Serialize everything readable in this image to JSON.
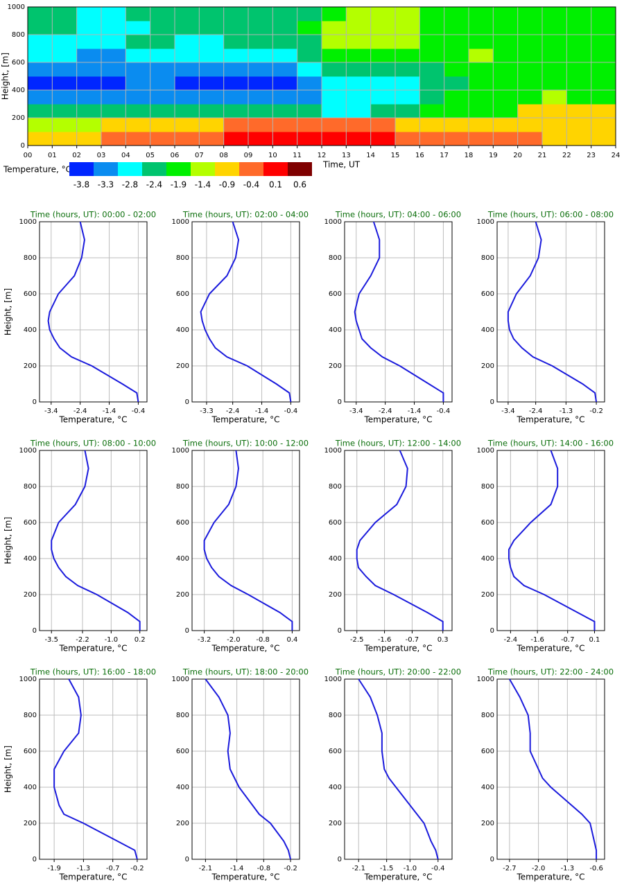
{
  "chart_data": [
    {
      "type": "heatmap",
      "xlabel": "Time, UT",
      "ylabel": "Height, [m]",
      "xlim": [
        0,
        24
      ],
      "ylim": [
        0,
        1000
      ],
      "xticks": [
        {
          "value": 0,
          "label": "00"
        },
        {
          "value": 1,
          "label": "01"
        },
        {
          "value": 2,
          "label": "02"
        },
        {
          "value": 3,
          "label": "03"
        },
        {
          "value": 4,
          "label": "04"
        },
        {
          "value": 5,
          "label": "05"
        },
        {
          "value": 6,
          "label": "06"
        },
        {
          "value": 7,
          "label": "07"
        },
        {
          "value": 8,
          "label": "08"
        },
        {
          "value": 9,
          "label": "09"
        },
        10,
        11,
        12,
        13,
        14,
        15,
        16,
        17,
        18,
        19,
        20,
        21,
        22,
        23,
        24
      ],
      "yticks": [
        0,
        200,
        400,
        600,
        800,
        1000
      ],
      "grid": true,
      "xbins": [
        0,
        1,
        2,
        3,
        4,
        5,
        6,
        7,
        8,
        9,
        10,
        11,
        12,
        13,
        14,
        15,
        16,
        17,
        18,
        19,
        20,
        21,
        22,
        23,
        24
      ],
      "ybins": [
        0,
        100,
        200,
        300,
        400,
        500,
        600,
        700,
        800,
        900,
        1000
      ],
      "z": [
        [
          -0.9,
          -0.9,
          -0.9,
          -0.4,
          -0.4,
          -0.4,
          -0.4,
          -0.4,
          0.1,
          0.1,
          0.1,
          0.1,
          0.1,
          0.1,
          0.1,
          -0.4,
          -0.4,
          -0.4,
          -0.4,
          -0.4,
          -0.4,
          -0.9,
          -0.9,
          -0.9
        ],
        [
          -1.4,
          -1.4,
          -1.4,
          -0.9,
          -0.9,
          -0.9,
          -0.9,
          -0.9,
          -0.4,
          -0.4,
          -0.4,
          -0.4,
          -0.4,
          -0.4,
          -0.4,
          -0.9,
          -0.9,
          -0.9,
          -0.9,
          -0.9,
          -0.9,
          -0.9,
          -0.9,
          -0.9
        ],
        [
          -2.4,
          -2.4,
          -2.4,
          -2.4,
          -2.4,
          -2.4,
          -2.4,
          -2.4,
          -2.4,
          -2.4,
          -2.4,
          -2.4,
          -2.8,
          -2.8,
          -2.4,
          -2.4,
          -1.9,
          -1.9,
          -1.9,
          -1.9,
          -0.9,
          -0.9,
          -0.9,
          -0.9
        ],
        [
          -3.3,
          -3.3,
          -3.3,
          -3.3,
          -3.3,
          -3.3,
          -3.3,
          -3.3,
          -3.3,
          -3.3,
          -3.3,
          -3.3,
          -2.8,
          -2.8,
          -2.8,
          -2.8,
          -2.4,
          -1.9,
          -1.9,
          -1.9,
          -1.9,
          -1.4,
          -1.9,
          -1.9
        ],
        [
          -3.8,
          -3.8,
          -3.8,
          -3.8,
          -3.3,
          -3.3,
          -3.8,
          -3.8,
          -3.8,
          -3.8,
          -3.8,
          -3.3,
          -2.8,
          -2.8,
          -2.8,
          -2.8,
          -2.4,
          -2.4,
          -1.9,
          -1.9,
          -1.9,
          -1.9,
          -1.9,
          -1.9
        ],
        [
          -3.3,
          -3.3,
          -3.3,
          -3.3,
          -3.3,
          -3.3,
          -3.3,
          -3.3,
          -3.3,
          -3.3,
          -3.3,
          -2.8,
          -2.4,
          -2.4,
          -2.4,
          -2.4,
          -2.4,
          -1.9,
          -1.9,
          -1.9,
          -1.9,
          -1.9,
          -1.9,
          -1.9
        ],
        [
          -2.8,
          -2.8,
          -3.3,
          -3.3,
          -2.8,
          -2.8,
          -2.8,
          -2.8,
          -2.8,
          -2.8,
          -2.8,
          -2.4,
          -1.9,
          -1.9,
          -1.9,
          -1.9,
          -1.9,
          -1.9,
          -1.4,
          -1.9,
          -1.9,
          -1.9,
          -1.9,
          -1.9
        ],
        [
          -2.8,
          -2.8,
          -2.8,
          -2.8,
          -2.4,
          -2.4,
          -2.8,
          -2.8,
          -2.4,
          -2.4,
          -2.4,
          -2.4,
          -1.4,
          -1.4,
          -1.4,
          -1.4,
          -1.9,
          -1.9,
          -1.9,
          -1.9,
          -1.9,
          -1.9,
          -1.9,
          -1.9
        ],
        [
          -2.4,
          -2.4,
          -2.8,
          -2.8,
          -2.8,
          -2.4,
          -2.4,
          -2.4,
          -2.4,
          -2.4,
          -2.4,
          -1.9,
          -1.4,
          -1.4,
          -1.4,
          -1.4,
          -1.9,
          -1.9,
          -1.9,
          -1.9,
          -1.9,
          -1.9,
          -1.9,
          -1.9
        ],
        [
          -2.4,
          -2.4,
          -2.8,
          -2.8,
          -2.4,
          -2.4,
          -2.4,
          -2.4,
          -2.4,
          -2.4,
          -2.4,
          -2.4,
          -1.9,
          -1.4,
          -1.4,
          -1.4,
          -1.9,
          -1.9,
          -1.9,
          -1.9,
          -1.9,
          -1.9,
          -1.9,
          -1.9
        ]
      ],
      "colorbar": {
        "label": "Temperature, °C",
        "levels": [
          -3.8,
          -3.3,
          -2.8,
          -2.4,
          -1.9,
          -1.4,
          -0.9,
          -0.4,
          0.1,
          0.6
        ],
        "colors": [
          "#0026ff",
          "#0a8cf0",
          "#00ffff",
          "#00c46e",
          "#00f000",
          "#b4ff00",
          "#ffd400",
          "#ff6a2a",
          "#ff0000",
          "#7f0000"
        ]
      }
    },
    {
      "type": "line",
      "title": "Time (hours, UT): 00:00 - 02:00",
      "xlabel": "Temperature, °C",
      "ylabel": "Height, [m]",
      "color": "#1a1adc",
      "xlim": [
        -3.8,
        -0.1
      ],
      "ylim": [
        0,
        1000
      ],
      "xticks": [
        -3.4,
        -2.4,
        -1.4,
        -0.4
      ],
      "yticks": [
        0,
        200,
        400,
        600,
        800,
        1000
      ],
      "y": [
        0,
        50,
        100,
        200,
        250,
        300,
        350,
        400,
        450,
        500,
        600,
        700,
        800,
        900,
        1000
      ],
      "values": [
        -0.4,
        -0.45,
        -0.95,
        -2.0,
        -2.7,
        -3.1,
        -3.3,
        -3.45,
        -3.5,
        -3.45,
        -3.15,
        -2.6,
        -2.35,
        -2.25,
        -2.4
      ]
    },
    {
      "type": "line",
      "title": "Time (hours, UT): 02:00 - 04:00",
      "xlabel": "Temperature, °C",
      "color": "#1a1adc",
      "xlim": [
        -3.8,
        -0.1
      ],
      "ylim": [
        0,
        1000
      ],
      "xticks": [
        -3.3,
        -2.4,
        -1.4,
        -0.4
      ],
      "yticks": [
        0,
        200,
        400,
        600,
        800,
        1000
      ],
      "y": [
        0,
        50,
        100,
        200,
        250,
        300,
        350,
        400,
        450,
        500,
        600,
        700,
        800,
        900,
        1000
      ],
      "values": [
        -0.4,
        -0.45,
        -0.9,
        -1.9,
        -2.6,
        -3.0,
        -3.2,
        -3.35,
        -3.45,
        -3.5,
        -3.2,
        -2.6,
        -2.3,
        -2.2,
        -2.4
      ]
    },
    {
      "type": "line",
      "title": "Time (hours, UT): 04:00 - 06:00",
      "xlabel": "Temperature, °C",
      "color": "#1a1adc",
      "xlim": [
        -3.8,
        -0.1
      ],
      "ylim": [
        0,
        1000
      ],
      "xticks": [
        -3.4,
        -2.4,
        -1.4,
        -0.4
      ],
      "yticks": [
        0,
        200,
        400,
        600,
        800,
        1000
      ],
      "y": [
        0,
        50,
        100,
        200,
        250,
        300,
        350,
        400,
        450,
        500,
        600,
        700,
        800,
        900,
        1000
      ],
      "values": [
        -0.4,
        -0.4,
        -0.9,
        -1.9,
        -2.5,
        -2.9,
        -3.2,
        -3.3,
        -3.4,
        -3.45,
        -3.3,
        -2.9,
        -2.6,
        -2.6,
        -2.8
      ]
    },
    {
      "type": "line",
      "title": "Time (hours, UT): 06:00 - 08:00",
      "xlabel": "Temperature, °C",
      "color": "#1a1adc",
      "xlim": [
        -3.8,
        0.1
      ],
      "ylim": [
        0,
        1000
      ],
      "xticks": [
        -3.4,
        -2.4,
        -1.3,
        -0.2
      ],
      "yticks": [
        0,
        200,
        400,
        600,
        800,
        1000
      ],
      "y": [
        0,
        50,
        100,
        200,
        250,
        300,
        350,
        400,
        450,
        500,
        600,
        700,
        800,
        900,
        1000
      ],
      "values": [
        -0.2,
        -0.25,
        -0.7,
        -1.8,
        -2.5,
        -2.9,
        -3.2,
        -3.35,
        -3.4,
        -3.4,
        -3.1,
        -2.6,
        -2.3,
        -2.2,
        -2.4
      ]
    },
    {
      "type": "line",
      "title": "Time (hours, UT): 08:00 - 10:00",
      "xlabel": "Temperature, °C",
      "ylabel": "Height, [m]",
      "color": "#1a1adc",
      "xlim": [
        -4.0,
        0.5
      ],
      "ylim": [
        0,
        1000
      ],
      "xticks": [
        -3.5,
        -2.2,
        {
          "value": -1,
          "label": "-1.0"
        },
        0.2
      ],
      "yticks": [
        0,
        200,
        400,
        600,
        800,
        1000
      ],
      "y": [
        0,
        50,
        100,
        200,
        250,
        300,
        350,
        400,
        450,
        500,
        600,
        700,
        800,
        900,
        1000
      ],
      "values": [
        0.2,
        0.2,
        -0.3,
        -1.6,
        -2.4,
        -2.9,
        -3.2,
        -3.4,
        -3.5,
        -3.5,
        -3.2,
        -2.5,
        -2.1,
        -1.95,
        -2.1
      ]
    },
    {
      "type": "line",
      "title": "Time (hours, UT): 10:00 - 12:00",
      "xlabel": "Temperature, °C",
      "color": "#1a1adc",
      "xlim": [
        -3.7,
        0.7
      ],
      "ylim": [
        0,
        1000
      ],
      "xticks": [
        -3.2,
        {
          "value": -2,
          "label": "-2.0"
        },
        -0.8,
        0.4
      ],
      "yticks": [
        0,
        200,
        400,
        600,
        800,
        1000
      ],
      "y": [
        0,
        50,
        100,
        200,
        250,
        300,
        350,
        400,
        450,
        500,
        600,
        700,
        800,
        900,
        1000
      ],
      "values": [
        0.4,
        0.4,
        -0.1,
        -1.4,
        -2.1,
        -2.6,
        -2.9,
        -3.1,
        -3.2,
        -3.2,
        -2.8,
        -2.2,
        -1.9,
        -1.8,
        -1.9
      ]
    },
    {
      "type": "line",
      "title": "Time (hours, UT): 12:00 - 14:00",
      "xlabel": "Temperature, °C",
      "color": "#1a1adc",
      "xlim": [
        -2.9,
        0.6
      ],
      "ylim": [
        0,
        1000
      ],
      "xticks": [
        -2.5,
        -1.6,
        -0.7,
        0.3
      ],
      "yticks": [
        0,
        200,
        400,
        600,
        800,
        1000
      ],
      "y": [
        0,
        50,
        100,
        200,
        250,
        300,
        350,
        400,
        450,
        500,
        600,
        700,
        800,
        900,
        1000
      ],
      "values": [
        0.3,
        0.3,
        -0.2,
        -1.3,
        -1.9,
        -2.2,
        -2.45,
        -2.5,
        -2.5,
        -2.4,
        -1.9,
        -1.2,
        -0.9,
        -0.85,
        -1.1
      ]
    },
    {
      "type": "line",
      "title": "Time (hours, UT): 14:00 - 16:00",
      "xlabel": "Temperature, °C",
      "color": "#1a1adc",
      "xlim": [
        -2.8,
        0.4
      ],
      "ylim": [
        0,
        1000
      ],
      "xticks": [
        -2.4,
        -1.6,
        -0.7,
        0.1
      ],
      "yticks": [
        0,
        200,
        400,
        600,
        800,
        1000
      ],
      "y": [
        0,
        50,
        100,
        200,
        250,
        300,
        350,
        400,
        450,
        500,
        600,
        700,
        800,
        900,
        1000
      ],
      "values": [
        0.1,
        0.1,
        -0.4,
        -1.4,
        -2.0,
        -2.3,
        -2.4,
        -2.45,
        -2.45,
        -2.3,
        -1.8,
        -1.2,
        -1.0,
        -1.0,
        -1.2
      ]
    },
    {
      "type": "line",
      "title": "Time (hours, UT): 16:00 - 18:00",
      "xlabel": "Temperature, °C",
      "ylabel": "Height, [m]",
      "color": "#1a1adc",
      "xlim": [
        -2.2,
        0.0
      ],
      "ylim": [
        0,
        1000
      ],
      "xticks": [
        -1.9,
        -1.3,
        -0.7,
        -0.2
      ],
      "yticks": [
        0,
        200,
        400,
        600,
        800,
        1000
      ],
      "y": [
        0,
        50,
        100,
        200,
        250,
        300,
        350,
        400,
        450,
        500,
        600,
        700,
        800,
        900,
        1000
      ],
      "values": [
        -0.2,
        -0.25,
        -0.6,
        -1.3,
        -1.7,
        -1.8,
        -1.85,
        -1.9,
        -1.9,
        -1.9,
        -1.7,
        -1.4,
        -1.35,
        -1.4,
        -1.6
      ]
    },
    {
      "type": "line",
      "title": "Time (hours, UT): 18:00 - 20:00",
      "xlabel": "Temperature, °C",
      "color": "#1a1adc",
      "xlim": [
        -2.4,
        0.0
      ],
      "ylim": [
        0,
        1000
      ],
      "xticks": [
        -2.1,
        -1.4,
        -0.8,
        -0.2
      ],
      "yticks": [
        0,
        200,
        400,
        600,
        800,
        1000
      ],
      "y": [
        0,
        50,
        100,
        200,
        250,
        300,
        350,
        400,
        450,
        500,
        600,
        700,
        800,
        900,
        1000
      ],
      "values": [
        -0.2,
        -0.25,
        -0.35,
        -0.65,
        -0.9,
        -1.05,
        -1.2,
        -1.35,
        -1.45,
        -1.55,
        -1.6,
        -1.55,
        -1.6,
        -1.8,
        -2.1
      ]
    },
    {
      "type": "line",
      "title": "Time (hours, UT): 20:00 - 22:00",
      "xlabel": "Temperature, °C",
      "color": "#1a1adc",
      "xlim": [
        -2.4,
        -0.1
      ],
      "ylim": [
        0,
        1000
      ],
      "xticks": [
        -2.1,
        -1.5,
        {
          "value": -1,
          "label": "-1.0"
        },
        -0.4
      ],
      "yticks": [
        0,
        200,
        400,
        600,
        800,
        1000
      ],
      "y": [
        0,
        50,
        100,
        200,
        250,
        300,
        350,
        400,
        450,
        500,
        600,
        700,
        800,
        900,
        1000
      ],
      "values": [
        -0.4,
        -0.45,
        -0.55,
        -0.7,
        -0.85,
        -1.0,
        -1.15,
        -1.3,
        -1.45,
        -1.55,
        -1.6,
        -1.6,
        -1.7,
        -1.85,
        -2.1
      ]
    },
    {
      "type": "line",
      "title": "Time (hours, UT): 22:00 - 24:00",
      "xlabel": "Temperature, °C",
      "color": "#1a1adc",
      "xlim": [
        -3.0,
        -0.4
      ],
      "ylim": [
        0,
        1000
      ],
      "xticks": [
        -2.7,
        {
          "value": -2,
          "label": "-2.0"
        },
        -1.3,
        -0.6
      ],
      "yticks": [
        0,
        200,
        400,
        600,
        800,
        1000
      ],
      "y": [
        0,
        50,
        100,
        200,
        250,
        300,
        350,
        400,
        450,
        500,
        600,
        700,
        800,
        900,
        1000
      ],
      "values": [
        -0.6,
        -0.6,
        -0.65,
        -0.75,
        -0.95,
        -1.2,
        -1.45,
        -1.7,
        -1.9,
        -2.0,
        -2.2,
        -2.2,
        -2.25,
        -2.45,
        -2.7
      ]
    }
  ]
}
